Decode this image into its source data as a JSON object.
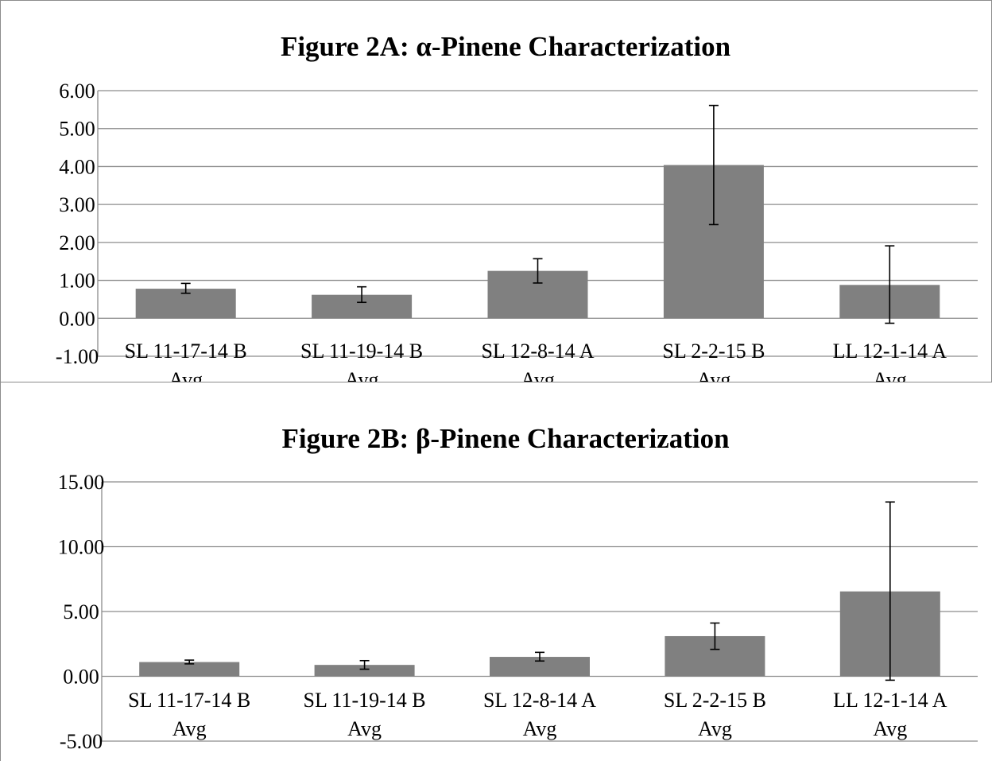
{
  "colors": {
    "bar": "#808080",
    "grid": "#8c8c8c",
    "axis": "#8c8c8c",
    "error": "#000000"
  },
  "chart_data": [
    {
      "type": "bar",
      "title": "Figure 2A: α-Pinene Characterization",
      "xlabel": "",
      "ylabel": "",
      "ylim": [
        -1.0,
        6.0
      ],
      "yticks": [
        "6.00",
        "5.00",
        "4.00",
        "3.00",
        "2.00",
        "1.00",
        "0.00",
        "-1.00"
      ],
      "grid": true,
      "legend": "none",
      "categories": [
        [
          "SL 11-17-14 B",
          "Avg"
        ],
        [
          "SL 11-19-14 B",
          "Avg"
        ],
        [
          "SL 12-8-14 A",
          "Avg"
        ],
        [
          "SL 2-2-15 B",
          "Avg"
        ],
        [
          "LL 12-1-14 A",
          "Avg"
        ]
      ],
      "values": [
        0.78,
        0.62,
        1.25,
        4.04,
        0.88
      ],
      "error_low": [
        0.66,
        0.42,
        0.93,
        2.47,
        -0.13
      ],
      "error_high": [
        0.92,
        0.83,
        1.57,
        5.61,
        1.91
      ]
    },
    {
      "type": "bar",
      "title": "Figure 2B: β-Pinene Characterization",
      "xlabel": "",
      "ylabel": "",
      "ylim": [
        -5.0,
        15.0
      ],
      "yticks": [
        "15.00",
        "10.00",
        "5.00",
        "0.00",
        "-5.00"
      ],
      "grid": true,
      "legend": "none",
      "categories": [
        [
          "SL 11-17-14 B",
          "Avg"
        ],
        [
          "SL 11-19-14 B",
          "Avg"
        ],
        [
          "SL 12-8-14 A",
          "Avg"
        ],
        [
          "SL 2-2-15 B",
          "Avg"
        ],
        [
          "LL 12-1-14 A",
          "Avg"
        ]
      ],
      "values": [
        1.1,
        0.88,
        1.5,
        3.1,
        6.55
      ],
      "error_low": [
        0.96,
        0.55,
        1.18,
        2.08,
        -0.3
      ],
      "error_high": [
        1.25,
        1.21,
        1.85,
        4.11,
        13.45
      ]
    }
  ]
}
